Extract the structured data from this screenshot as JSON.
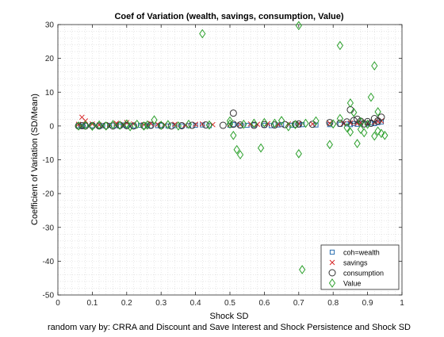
{
  "chart_data": {
    "type": "scatter",
    "title": "Coef of Variation (wealth, savings, consumption, Value)",
    "xlabel": "Shock SD",
    "ylabel": "Coefficient of Variation (SD/Mean)",
    "caption": "random vary by: CRRA and Discount and Save Interest and Shock Persistence and Shock SD",
    "xlim": [
      0,
      1
    ],
    "ylim": [
      -50,
      30
    ],
    "xticks": [
      "0",
      "0.1",
      "0.2",
      "0.3",
      "0.4",
      "0.5",
      "0.6",
      "0.7",
      "0.8",
      "0.9",
      "1"
    ],
    "yticks": [
      "30",
      "20",
      "10",
      "0",
      "-10",
      "-20",
      "-30",
      "-40",
      "-50"
    ],
    "grid": "minor-dotted",
    "legend_position": "bottom-right",
    "series": [
      {
        "name": "coh=wealth",
        "marker": "square",
        "color": "#2a6fb0",
        "points": [
          [
            0.06,
            0.1
          ],
          [
            0.07,
            0.0
          ],
          [
            0.08,
            0.2
          ],
          [
            0.1,
            0.1
          ],
          [
            0.12,
            0.0
          ],
          [
            0.13,
            0.1
          ],
          [
            0.15,
            0.2
          ],
          [
            0.17,
            0.1
          ],
          [
            0.18,
            0.0
          ],
          [
            0.19,
            0.3
          ],
          [
            0.2,
            0.1
          ],
          [
            0.22,
            0.0
          ],
          [
            0.24,
            0.2
          ],
          [
            0.26,
            0.1
          ],
          [
            0.27,
            0.0
          ],
          [
            0.29,
            0.1
          ],
          [
            0.3,
            0.2
          ],
          [
            0.32,
            0.0
          ],
          [
            0.34,
            0.1
          ],
          [
            0.36,
            0.0
          ],
          [
            0.38,
            0.1
          ],
          [
            0.4,
            0.2
          ],
          [
            0.42,
            0.3
          ],
          [
            0.44,
            0.1
          ],
          [
            0.5,
            0.2
          ],
          [
            0.51,
            0.4
          ],
          [
            0.53,
            0.1
          ],
          [
            0.55,
            0.2
          ],
          [
            0.57,
            0.3
          ],
          [
            0.6,
            0.2
          ],
          [
            0.62,
            0.1
          ],
          [
            0.64,
            0.3
          ],
          [
            0.65,
            0.4
          ],
          [
            0.68,
            0.2
          ],
          [
            0.7,
            0.3
          ],
          [
            0.71,
            0.4
          ],
          [
            0.75,
            0.3
          ],
          [
            0.79,
            0.4
          ],
          [
            0.82,
            0.5
          ],
          [
            0.84,
            0.6
          ],
          [
            0.85,
            0.4
          ],
          [
            0.86,
            0.7
          ],
          [
            0.87,
            0.5
          ],
          [
            0.88,
            0.8
          ],
          [
            0.9,
            0.6
          ],
          [
            0.91,
            0.9
          ],
          [
            0.92,
            0.7
          ],
          [
            0.93,
            1.0
          ],
          [
            0.94,
            1.2
          ]
        ]
      },
      {
        "name": "savings",
        "marker": "x",
        "color": "#d62728",
        "points": [
          [
            0.07,
            2.6
          ],
          [
            0.08,
            1.5
          ],
          [
            0.06,
            0.5
          ],
          [
            0.1,
            0.6
          ],
          [
            0.12,
            0.3
          ],
          [
            0.15,
            0.4
          ],
          [
            0.17,
            0.8
          ],
          [
            0.19,
            0.5
          ],
          [
            0.2,
            1.0
          ],
          [
            0.22,
            0.6
          ],
          [
            0.25,
            0.4
          ],
          [
            0.27,
            0.7
          ],
          [
            0.29,
            0.5
          ],
          [
            0.31,
            0.4
          ],
          [
            0.34,
            0.5
          ],
          [
            0.37,
            0.3
          ],
          [
            0.4,
            0.5
          ],
          [
            0.42,
            0.6
          ],
          [
            0.45,
            0.4
          ],
          [
            0.5,
            0.5
          ],
          [
            0.53,
            0.4
          ],
          [
            0.56,
            0.6
          ],
          [
            0.58,
            0.5
          ],
          [
            0.61,
            0.7
          ],
          [
            0.64,
            0.5
          ],
          [
            0.67,
            0.6
          ],
          [
            0.7,
            0.7
          ],
          [
            0.74,
            0.6
          ],
          [
            0.79,
            0.8
          ],
          [
            0.83,
            0.7
          ],
          [
            0.85,
            0.9
          ],
          [
            0.87,
            0.8
          ],
          [
            0.88,
            1.0
          ],
          [
            0.9,
            0.9
          ],
          [
            0.92,
            1.1
          ],
          [
            0.93,
            1.3
          ],
          [
            0.94,
            1.5
          ]
        ]
      },
      {
        "name": "consumption",
        "marker": "circle",
        "color": "#333333",
        "points": [
          [
            0.06,
            0.0
          ],
          [
            0.07,
            0.1
          ],
          [
            0.08,
            0.0
          ],
          [
            0.1,
            0.1
          ],
          [
            0.12,
            0.0
          ],
          [
            0.14,
            0.1
          ],
          [
            0.16,
            0.0
          ],
          [
            0.18,
            0.2
          ],
          [
            0.2,
            0.1
          ],
          [
            0.22,
            0.0
          ],
          [
            0.25,
            0.1
          ],
          [
            0.27,
            0.2
          ],
          [
            0.3,
            0.1
          ],
          [
            0.33,
            0.0
          ],
          [
            0.36,
            0.1
          ],
          [
            0.39,
            0.2
          ],
          [
            0.43,
            0.3
          ],
          [
            0.48,
            0.2
          ],
          [
            0.51,
            3.8
          ],
          [
            0.51,
            0.5
          ],
          [
            0.53,
            0.3
          ],
          [
            0.57,
            0.2
          ],
          [
            0.6,
            0.4
          ],
          [
            0.63,
            0.3
          ],
          [
            0.66,
            0.4
          ],
          [
            0.69,
            0.5
          ],
          [
            0.7,
            0.6
          ],
          [
            0.74,
            0.5
          ],
          [
            0.79,
            1.0
          ],
          [
            0.82,
            0.8
          ],
          [
            0.84,
            1.2
          ],
          [
            0.85,
            4.8
          ],
          [
            0.86,
            1.6
          ],
          [
            0.87,
            2.0
          ],
          [
            0.88,
            1.4
          ],
          [
            0.89,
            0.6
          ],
          [
            0.9,
            1.3
          ],
          [
            0.91,
            0.8
          ],
          [
            0.92,
            2.2
          ],
          [
            0.93,
            1.5
          ],
          [
            0.94,
            2.6
          ]
        ]
      },
      {
        "name": "Value",
        "marker": "diamond",
        "color": "#2ca02c",
        "points": [
          [
            0.06,
            0.0
          ],
          [
            0.08,
            0.2
          ],
          [
            0.1,
            -0.1
          ],
          [
            0.12,
            0.3
          ],
          [
            0.14,
            0.0
          ],
          [
            0.16,
            0.4
          ],
          [
            0.18,
            0.2
          ],
          [
            0.2,
            0.6
          ],
          [
            0.21,
            -0.2
          ],
          [
            0.23,
            0.5
          ],
          [
            0.25,
            0.0
          ],
          [
            0.26,
            0.3
          ],
          [
            0.28,
            1.8
          ],
          [
            0.3,
            0.2
          ],
          [
            0.32,
            0.4
          ],
          [
            0.35,
            0.0
          ],
          [
            0.38,
            0.5
          ],
          [
            0.42,
            27.3
          ],
          [
            0.44,
            0.3
          ],
          [
            0.5,
            1.5
          ],
          [
            0.5,
            0.6
          ],
          [
            0.51,
            -2.8
          ],
          [
            0.52,
            -7.0
          ],
          [
            0.53,
            -8.5
          ],
          [
            0.54,
            0.5
          ],
          [
            0.57,
            0.8
          ],
          [
            0.59,
            -6.5
          ],
          [
            0.6,
            1.0
          ],
          [
            0.63,
            0.8
          ],
          [
            0.65,
            1.6
          ],
          [
            0.67,
            -0.2
          ],
          [
            0.69,
            0.4
          ],
          [
            0.7,
            29.7
          ],
          [
            0.7,
            -8.2
          ],
          [
            0.71,
            -42.5
          ],
          [
            0.72,
            0.8
          ],
          [
            0.75,
            1.5
          ],
          [
            0.79,
            -5.5
          ],
          [
            0.8,
            0.6
          ],
          [
            0.82,
            23.8
          ],
          [
            0.82,
            2.2
          ],
          [
            0.84,
            -0.5
          ],
          [
            0.85,
            6.8
          ],
          [
            0.85,
            -1.8
          ],
          [
            0.86,
            4.0
          ],
          [
            0.87,
            -5.2
          ],
          [
            0.88,
            -1.0
          ],
          [
            0.88,
            1.2
          ],
          [
            0.89,
            -2.0
          ],
          [
            0.9,
            0.5
          ],
          [
            0.91,
            8.5
          ],
          [
            0.92,
            17.8
          ],
          [
            0.92,
            -3.0
          ],
          [
            0.93,
            4.2
          ],
          [
            0.93,
            -1.5
          ],
          [
            0.94,
            -2.2
          ],
          [
            0.95,
            -2.8
          ]
        ]
      }
    ]
  }
}
